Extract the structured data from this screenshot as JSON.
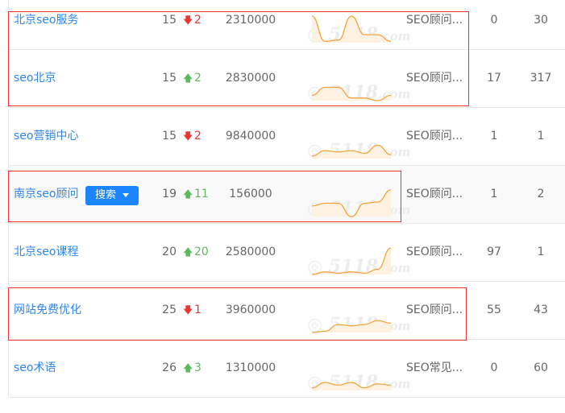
{
  "watermark": "5118.com",
  "accent": "#1a85ff",
  "highlight_box_color": "#ee3333",
  "rows": [
    {
      "keyword": "北京seo服务",
      "rank": "15",
      "direction": "down",
      "change": "2",
      "index": "2310000",
      "trend": [
        1.0,
        0.05,
        0.1,
        1.0,
        0.3,
        0.3,
        0.05
      ],
      "title": "SEO顾问...",
      "col1": "0",
      "col2": "30"
    },
    {
      "keyword": "seo北京",
      "rank": "15",
      "direction": "up",
      "change": "2",
      "index": "2830000",
      "trend": [
        0.2,
        0.5,
        0.5,
        0.1,
        0.1,
        0.0,
        0.2
      ],
      "title": "SEO顾问...",
      "col1": "17",
      "col2": "317"
    },
    {
      "keyword": "seo营销中心",
      "rank": "15",
      "direction": "down",
      "change": "2",
      "index": "9840000",
      "trend": [
        0.1,
        0.3,
        0.25,
        0.3,
        0.2,
        0.5,
        0.15
      ],
      "title": "SEO顾问...",
      "col1": "1",
      "col2": "1"
    },
    {
      "keyword": "南京seo顾问",
      "rank": "19",
      "direction": "up",
      "change": "11",
      "index": "156000",
      "trend": [
        0.4,
        0.5,
        0.5,
        0.0,
        0.5,
        0.55,
        1.0
      ],
      "title": "SEO顾问...",
      "col1": "1",
      "col2": "2",
      "hover": true,
      "button": "搜索"
    },
    {
      "keyword": "北京seo课程",
      "rank": "20",
      "direction": "up",
      "change": "20",
      "index": "2580000",
      "trend": [
        0.0,
        0.1,
        0.05,
        0.1,
        0.05,
        0.2,
        1.0
      ],
      "title": "SEO顾问...",
      "col1": "97",
      "col2": "1"
    },
    {
      "keyword": "网站免费优化",
      "rank": "25",
      "direction": "down",
      "change": "1",
      "index": "3960000",
      "trend": [
        0.0,
        0.05,
        0.3,
        0.25,
        0.3,
        0.45,
        0.35
      ],
      "title": "SEO顾问...",
      "col1": "55",
      "col2": "43"
    },
    {
      "keyword": "seo术语",
      "rank": "26",
      "direction": "up",
      "change": "3",
      "index": "1310000",
      "trend": [
        0.1,
        0.3,
        0.2,
        0.3,
        0.1,
        0.25,
        0.2
      ],
      "title": "SEO常见...",
      "col1": "0",
      "col2": "60"
    }
  ]
}
